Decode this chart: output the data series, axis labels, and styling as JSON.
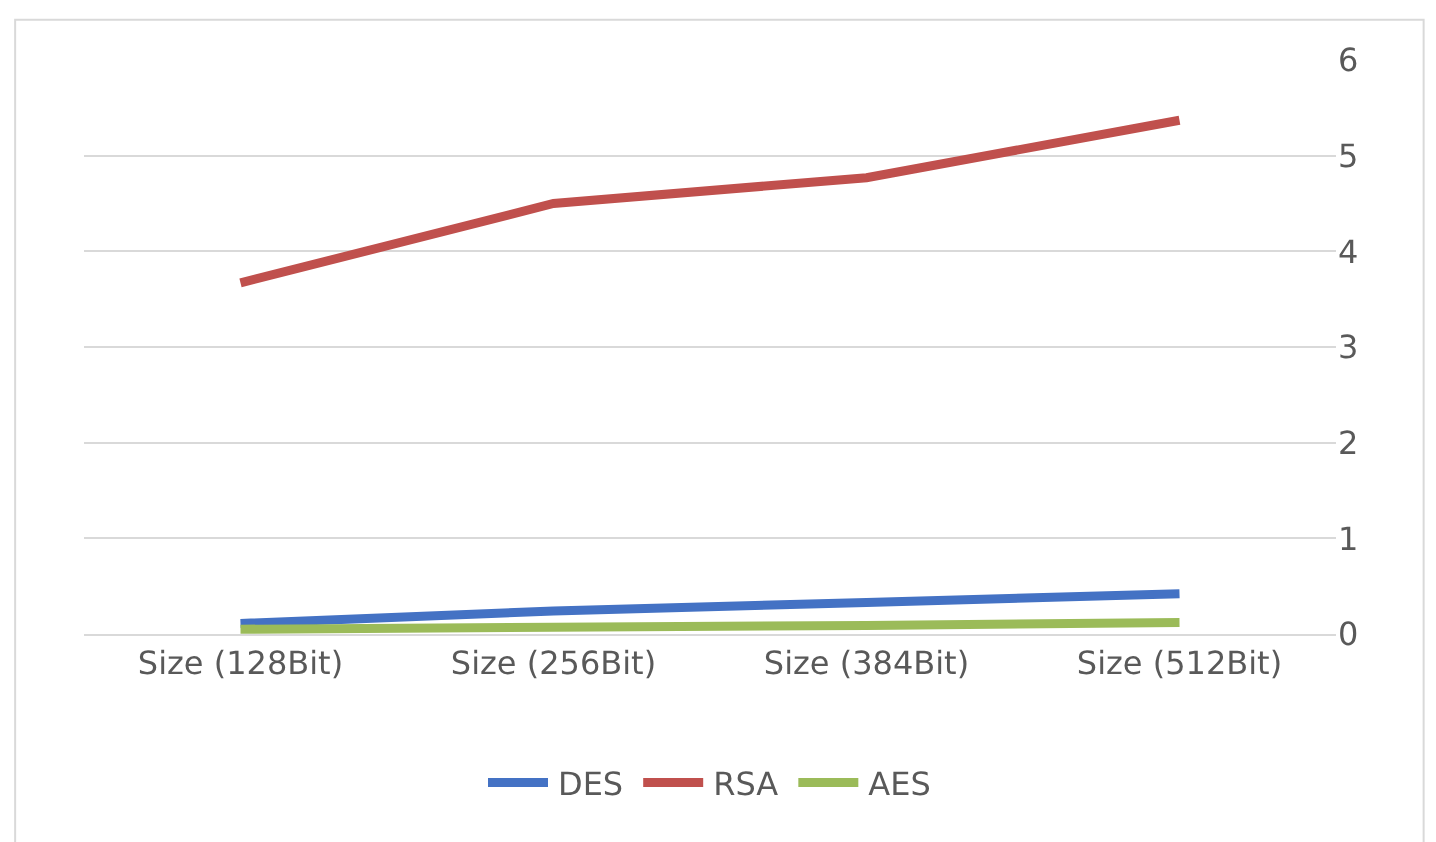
{
  "chart_data": {
    "type": "line",
    "categories": [
      "Size (128Bit)",
      "Size (256Bit)",
      "Size (384Bit)",
      "Size (512Bit)"
    ],
    "series": [
      {
        "name": "DES",
        "color": "#4472c4",
        "values": [
          0.11,
          0.24,
          0.33,
          0.42
        ]
      },
      {
        "name": "RSA",
        "color": "#c0504d",
        "values": [
          3.67,
          4.5,
          4.77,
          5.37
        ]
      },
      {
        "name": "AES",
        "color": "#9bbb59",
        "values": [
          0.05,
          0.07,
          0.09,
          0.12
        ]
      }
    ],
    "ylim": [
      0,
      6
    ],
    "yticks": [
      0,
      1,
      2,
      3,
      4,
      5,
      6
    ],
    "grid": "y",
    "legend": "bottom",
    "marker": "none",
    "line_style": "solid"
  }
}
